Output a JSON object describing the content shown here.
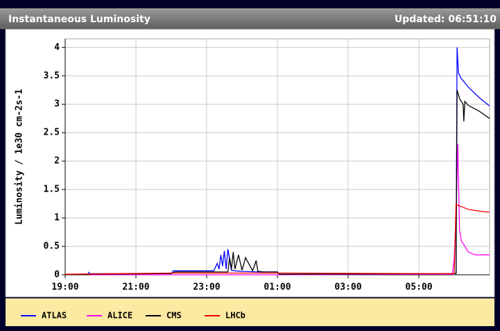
{
  "chart_data": {
    "type": "line",
    "title": "Instantaneous Luminosity",
    "subtitle": "Updated: 06:51:10",
    "ylabel": "Luminosity / 1e30 cm-2s-1",
    "xlim": [
      19,
      31
    ],
    "xticks": [
      {
        "value": 19,
        "label": "19:00"
      },
      {
        "value": 21,
        "label": "21:00"
      },
      {
        "value": 23,
        "label": "23:00"
      },
      {
        "value": 25,
        "label": "01:00"
      },
      {
        "value": 27,
        "label": "03:00"
      },
      {
        "value": 29,
        "label": "05:00"
      }
    ],
    "ylim": [
      0,
      4.15
    ],
    "yticks": [
      0,
      0.5,
      1,
      1.5,
      2,
      2.5,
      3,
      3.5,
      4
    ],
    "grid": true,
    "legend": "bottom",
    "series": [
      {
        "name": "ATLAS",
        "color": "#0000ff",
        "x": [
          19.65,
          19.7,
          21,
          22.0,
          22.05,
          23.2,
          23.3,
          23.35,
          23.4,
          23.45,
          23.5,
          23.55,
          23.6,
          23.7,
          23.8,
          24.0,
          24.5,
          25.0,
          25.05,
          27,
          29,
          29.95,
          30.05,
          30.08,
          30.12,
          30.2,
          30.4,
          30.7,
          31
        ],
        "values": [
          0.05,
          0.02,
          0.02,
          0.02,
          0.07,
          0.07,
          0.2,
          0.1,
          0.35,
          0.15,
          0.42,
          0.1,
          0.45,
          0.08,
          0.07,
          0.06,
          0.05,
          0.05,
          0.01,
          0.01,
          0.01,
          0.02,
          0.02,
          4.0,
          3.55,
          3.45,
          3.3,
          3.12,
          2.97
        ]
      },
      {
        "name": "ALICE",
        "color": "#ff00ff",
        "x": [
          19.7,
          25,
          29.95,
          30.0,
          30.05,
          30.1,
          30.15,
          30.2,
          30.3,
          30.4,
          30.6,
          31
        ],
        "values": [
          0,
          0,
          0.01,
          0.3,
          1.0,
          2.3,
          0.8,
          0.6,
          0.5,
          0.4,
          0.35,
          0.35
        ]
      },
      {
        "name": "CMS",
        "color": "#000000",
        "x": [
          19.7,
          22.0,
          22.1,
          23.6,
          23.65,
          23.7,
          23.75,
          23.8,
          23.9,
          24.0,
          24.1,
          24.3,
          24.4,
          24.45,
          24.5,
          24.6,
          25.0,
          25.05,
          29.95,
          30.05,
          30.08,
          30.15,
          30.25,
          30.27,
          30.3,
          30.4,
          30.7,
          31
        ],
        "values": [
          0.01,
          0.02,
          0.05,
          0.05,
          0.3,
          0.1,
          0.4,
          0.1,
          0.35,
          0.08,
          0.3,
          0.07,
          0.25,
          0.06,
          0.06,
          0.05,
          0.05,
          0.01,
          0.02,
          0.02,
          3.25,
          3.1,
          3.0,
          2.7,
          3.05,
          2.98,
          2.88,
          2.75
        ]
      },
      {
        "name": "LHCb",
        "color": "#ff0000",
        "x": [
          19.0,
          22.0,
          25.0,
          29.95,
          30.0,
          30.05,
          30.1,
          30.2,
          30.4,
          30.7,
          31
        ],
        "values": [
          0.01,
          0.03,
          0.03,
          0.02,
          0.02,
          1.25,
          1.22,
          1.2,
          1.15,
          1.12,
          1.1
        ]
      }
    ]
  }
}
